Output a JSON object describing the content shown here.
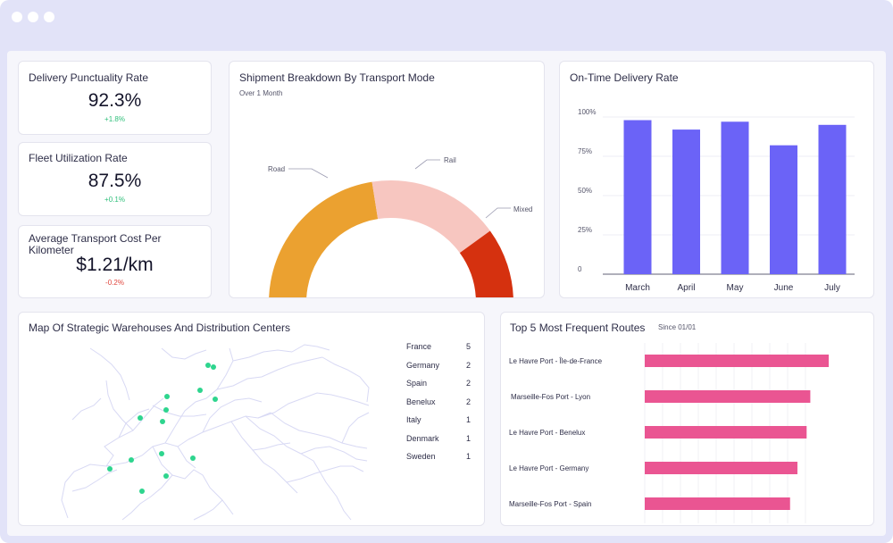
{
  "kpis": [
    {
      "title": "Delivery Punctuality Rate",
      "value": "92.3%",
      "delta": "+1.8%"
    },
    {
      "title": "Fleet Utilization Rate",
      "value": "87.5%",
      "delta": "+0.1%"
    },
    {
      "title": "Average Transport Cost Per Kilometer",
      "value": "$1.21/km",
      "delta": "-0.2%"
    }
  ],
  "shipment": {
    "title": "Shipment Breakdown By Transport Mode",
    "subtitle": "Over 1 Month",
    "labels": {
      "road": "Road",
      "rail": "Rail",
      "mixed": "Mixed"
    }
  },
  "delivery_rate": {
    "title": "On-Time Delivery Rate"
  },
  "map": {
    "title": "Map Of Strategic Warehouses And Distribution Centers",
    "legend": [
      {
        "country": "France",
        "count": "5"
      },
      {
        "country": "Germany",
        "count": "2"
      },
      {
        "country": "Spain",
        "count": "2"
      },
      {
        "country": "Benelux",
        "count": "2"
      },
      {
        "country": "Italy",
        "count": "1"
      },
      {
        "country": "Denmark",
        "count": "1"
      },
      {
        "country": "Sweden",
        "count": "1"
      }
    ]
  },
  "routes": {
    "title": "Top 5 Most Frequent Routes",
    "subtitle": "Since 01/01"
  },
  "colors": {
    "road": "#eba130",
    "rail": "#f7c6c0",
    "mixed": "#d5310f",
    "bar": "#6b63f7",
    "route_bar": "#ea5592",
    "marker": "#2ed58e"
  },
  "chart_data": [
    {
      "type": "pie",
      "title": "Shipment Breakdown By Transport Mode",
      "categories": [
        "Road",
        "Rail",
        "Mixed"
      ],
      "values": [
        45,
        35,
        20
      ]
    },
    {
      "type": "bar",
      "title": "On-Time Delivery Rate",
      "categories": [
        "March",
        "April",
        "May",
        "June",
        "July"
      ],
      "values": [
        98,
        92,
        97,
        82,
        95
      ],
      "yticks": [
        "100%",
        "75%",
        "50%",
        "25%",
        "0"
      ],
      "ylim": [
        0,
        100
      ]
    },
    {
      "type": "bar",
      "title": "Top 5 Most Frequent Routes",
      "orientation": "horizontal",
      "categories": [
        "Le Havre Port - Île-de-France",
        "Marseille-Fos Port - Lyon",
        "Le Havre Port - Benelux",
        "Le Havre Port - Germany",
        "Marseille-Fos Port - Spain"
      ],
      "values": [
        100,
        90,
        88,
        83,
        79
      ]
    }
  ]
}
